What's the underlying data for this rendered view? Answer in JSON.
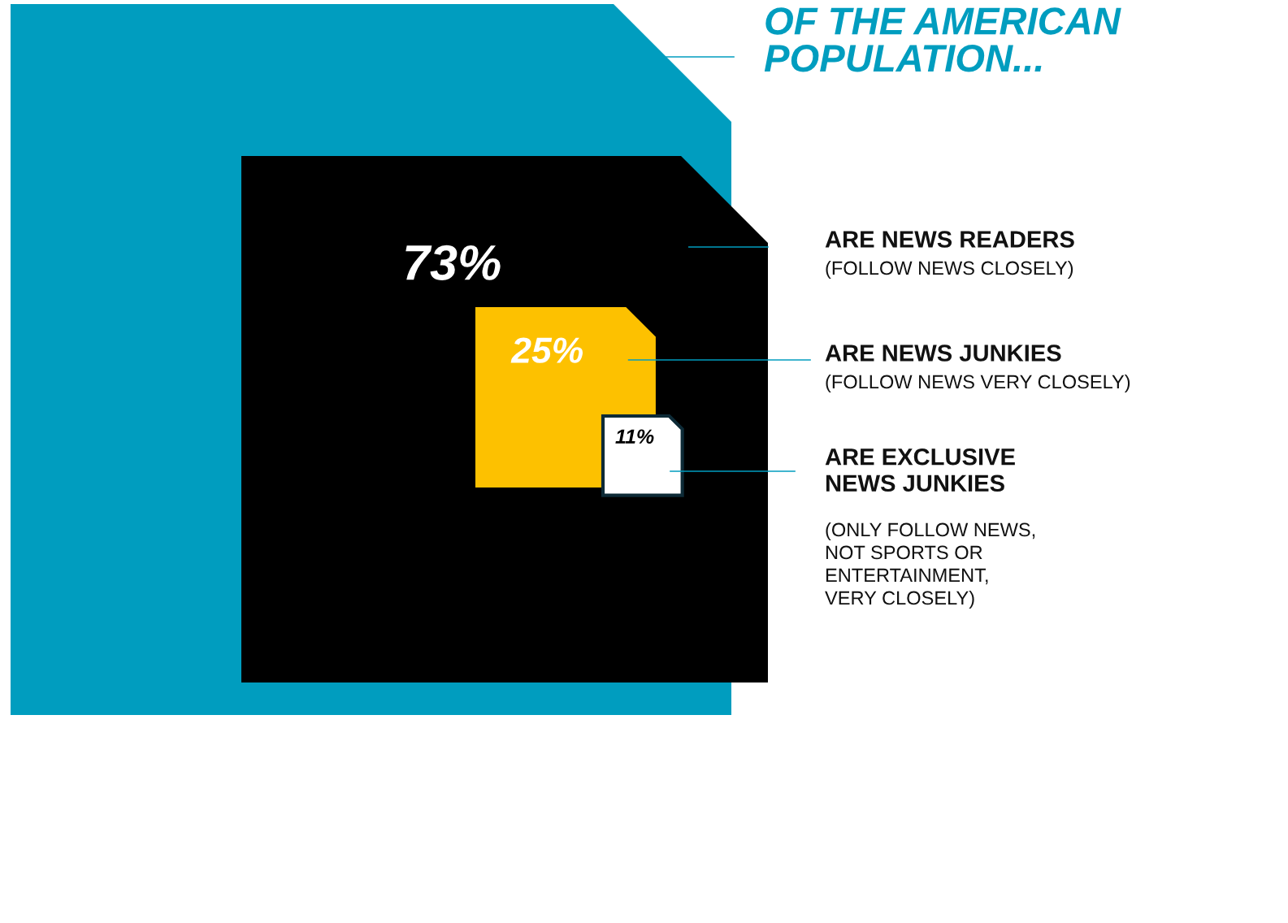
{
  "chart_data": {
    "type": "other",
    "title": "OF THE AMERICAN\nPOPULATION...",
    "categories": [
      "ARE NEWS READERS",
      "ARE NEWS JUNKIES",
      "ARE EXCLUSIVE\nNEWS JUNKIES"
    ],
    "values": [
      73,
      25,
      11
    ],
    "value_labels": [
      "73%",
      "25%",
      "11%"
    ],
    "colors": [
      "#000000",
      "#fdc100",
      "#ffffff"
    ],
    "annotations": [
      "(FOLLOW NEWS CLOSELY)",
      "(FOLLOW NEWS VERY CLOSELY)",
      "(ONLY FOLLOW NEWS,\nNOT SPORTS OR\nENTERTAINMENT,\nVERY CLOSELY)"
    ]
  }
}
